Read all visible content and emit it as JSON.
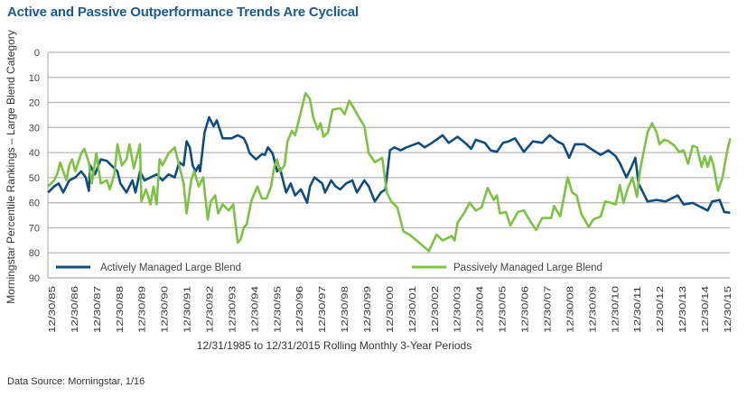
{
  "chart_data": {
    "type": "line",
    "title": "Active and Passive Outperformance Trends Are Cyclical",
    "ylabel": "Morningstar Percentile Rankings – Large Blend Category",
    "xlabel": "12/31/1985 to 12/31/2015 Rolling Monthly 3-Year Periods",
    "source": "Data Source: Morningstar, 1/16",
    "ylim": [
      0,
      90
    ],
    "y_inverted": true,
    "y_ticks": [
      0,
      10,
      20,
      30,
      40,
      50,
      60,
      70,
      80,
      90
    ],
    "x_tick_labels": [
      "12/30/85",
      "12/30/86",
      "12/30/87",
      "12/30/88",
      "12/30/89",
      "12/30/90",
      "12/30/91",
      "12/30/92",
      "12/30/93",
      "12/30/94",
      "12/30/95",
      "12/30/96",
      "12/30/97",
      "12/30/98",
      "12/30/99",
      "12/30/00",
      "12/30/01",
      "12/30/02",
      "12/30/03",
      "12/30/04",
      "12/30/05",
      "12/30/06",
      "12/30/07",
      "12/30/08",
      "12/30/09",
      "12/30/10",
      "12/30/11",
      "12/30/12",
      "12/30/13",
      "12/30/14",
      "12/30/15"
    ],
    "grid": true,
    "legend": "bottom",
    "series": [
      {
        "name": "Actively Managed Large Blend",
        "color": "#0f4c81",
        "points": [
          [
            1985.85,
            55.9
          ],
          [
            1986.12,
            53.5
          ],
          [
            1986.32,
            52.3
          ],
          [
            1986.52,
            55.9
          ],
          [
            1986.79,
            51.1
          ],
          [
            1987.06,
            49.9
          ],
          [
            1987.32,
            47.5
          ],
          [
            1987.52,
            49.9
          ],
          [
            1987.66,
            55.3
          ],
          [
            1987.72,
            45.1
          ],
          [
            1987.93,
            48.7
          ],
          [
            1988.19,
            42.7
          ],
          [
            1988.46,
            43.3
          ],
          [
            1988.66,
            45.1
          ],
          [
            1988.93,
            47.5
          ],
          [
            1989.06,
            52.3
          ],
          [
            1989.33,
            55.9
          ],
          [
            1989.46,
            53.5
          ],
          [
            1989.6,
            51.1
          ],
          [
            1989.73,
            55.9
          ],
          [
            1989.93,
            47.5
          ],
          [
            1990.13,
            51.1
          ],
          [
            1990.4,
            49.9
          ],
          [
            1990.67,
            48.7
          ],
          [
            1990.93,
            51.1
          ],
          [
            1991.2,
            48.7
          ],
          [
            1991.47,
            49.9
          ],
          [
            1991.67,
            43.9
          ],
          [
            1991.87,
            45.1
          ],
          [
            1992.0,
            35.5
          ],
          [
            1992.14,
            37.9
          ],
          [
            1992.27,
            45.1
          ],
          [
            1992.4,
            47.5
          ],
          [
            1992.54,
            45.1
          ],
          [
            1992.6,
            47.5
          ],
          [
            1992.8,
            31.9
          ],
          [
            1993.0,
            25.9
          ],
          [
            1993.2,
            29.5
          ],
          [
            1993.34,
            27.1
          ],
          [
            1993.6,
            34.3
          ],
          [
            1994.0,
            34.3
          ],
          [
            1994.27,
            33.1
          ],
          [
            1994.54,
            34.3
          ],
          [
            1994.67,
            36.7
          ],
          [
            1994.8,
            40.3
          ],
          [
            1995.08,
            42.7
          ],
          [
            1995.35,
            40.6
          ],
          [
            1995.48,
            40.9
          ],
          [
            1995.61,
            37.9
          ],
          [
            1995.82,
            40.3
          ],
          [
            1996.02,
            47.5
          ],
          [
            1996.15,
            46.3
          ],
          [
            1996.28,
            51.1
          ],
          [
            1996.42,
            55.9
          ],
          [
            1996.62,
            52.3
          ],
          [
            1996.82,
            57.1
          ],
          [
            1997.08,
            54.7
          ],
          [
            1997.35,
            60.0
          ],
          [
            1997.48,
            53.5
          ],
          [
            1997.68,
            49.9
          ],
          [
            1998.02,
            52.3
          ],
          [
            1998.15,
            55.9
          ],
          [
            1998.42,
            51.1
          ],
          [
            1998.62,
            53.5
          ],
          [
            1998.82,
            54.7
          ],
          [
            1999.09,
            52.3
          ],
          [
            1999.36,
            51.1
          ],
          [
            1999.56,
            55.9
          ],
          [
            1999.89,
            51.1
          ],
          [
            2000.09,
            53.5
          ],
          [
            2000.36,
            59.5
          ],
          [
            2000.63,
            55.9
          ],
          [
            2000.83,
            54.7
          ],
          [
            2001.03,
            39.1
          ],
          [
            2001.23,
            37.9
          ],
          [
            2001.5,
            39.1
          ],
          [
            2001.77,
            37.9
          ],
          [
            2002.3,
            36.1
          ],
          [
            2002.57,
            37.9
          ],
          [
            2002.9,
            36.1
          ],
          [
            2003.37,
            33.1
          ],
          [
            2003.64,
            36.1
          ],
          [
            2004.04,
            33.7
          ],
          [
            2004.44,
            36.7
          ],
          [
            2004.64,
            38.5
          ],
          [
            2004.84,
            34.9
          ],
          [
            2005.24,
            36.1
          ],
          [
            2005.5,
            39.1
          ],
          [
            2005.78,
            39.7
          ],
          [
            2006.05,
            36.1
          ],
          [
            2006.31,
            35.5
          ],
          [
            2006.58,
            34.3
          ],
          [
            2006.98,
            39.7
          ],
          [
            2007.38,
            35.5
          ],
          [
            2007.79,
            36.1
          ],
          [
            2008.12,
            33.1
          ],
          [
            2008.45,
            35.5
          ],
          [
            2008.72,
            36.7
          ],
          [
            2008.99,
            42.1
          ],
          [
            2009.25,
            36.7
          ],
          [
            2009.66,
            36.7
          ],
          [
            2010.06,
            39.1
          ],
          [
            2010.39,
            40.9
          ],
          [
            2010.73,
            39.1
          ],
          [
            2011.06,
            41.5
          ],
          [
            2011.26,
            44.5
          ],
          [
            2011.53,
            49.9
          ],
          [
            2011.73,
            46.3
          ],
          [
            2011.93,
            42.1
          ],
          [
            2012.07,
            52.3
          ],
          [
            2012.27,
            55.9
          ],
          [
            2012.47,
            59.5
          ],
          [
            2012.87,
            58.9
          ],
          [
            2013.27,
            59.5
          ],
          [
            2013.54,
            58.3
          ],
          [
            2013.81,
            57.1
          ],
          [
            2014.07,
            60.7
          ],
          [
            2014.47,
            60.1
          ],
          [
            2014.87,
            61.9
          ],
          [
            2015.14,
            63.1
          ],
          [
            2015.34,
            59.5
          ],
          [
            2015.67,
            58.9
          ],
          [
            2015.87,
            63.7
          ],
          [
            2016.14,
            64.0
          ]
        ]
      },
      {
        "name": "Passively Managed Large Blend",
        "color": "#7dc242",
        "points": [
          [
            1985.85,
            53.5
          ],
          [
            1986.12,
            51.1
          ],
          [
            1986.25,
            48.7
          ],
          [
            1986.39,
            44.0
          ],
          [
            1986.52,
            47.5
          ],
          [
            1986.66,
            51.1
          ],
          [
            1986.79,
            45.1
          ],
          [
            1986.92,
            42.7
          ],
          [
            1987.06,
            47.5
          ],
          [
            1987.32,
            40.3
          ],
          [
            1987.46,
            38.5
          ],
          [
            1987.66,
            44.0
          ],
          [
            1987.79,
            52.3
          ],
          [
            1987.99,
            40.3
          ],
          [
            1988.19,
            52.3
          ],
          [
            1988.46,
            51.1
          ],
          [
            1988.59,
            54.7
          ],
          [
            1988.79,
            48.7
          ],
          [
            1988.93,
            36.7
          ],
          [
            1989.13,
            45.1
          ],
          [
            1989.33,
            42.7
          ],
          [
            1989.46,
            36.7
          ],
          [
            1989.66,
            46.3
          ],
          [
            1989.93,
            36.7
          ],
          [
            1989.99,
            59.5
          ],
          [
            1990.2,
            54.7
          ],
          [
            1990.4,
            60.7
          ],
          [
            1990.53,
            53.5
          ],
          [
            1990.67,
            60.7
          ],
          [
            1990.8,
            42.7
          ],
          [
            1990.93,
            45.1
          ],
          [
            1991.2,
            40.3
          ],
          [
            1991.47,
            37.9
          ],
          [
            1991.67,
            45.1
          ],
          [
            1991.87,
            52.3
          ],
          [
            1992.0,
            64.3
          ],
          [
            1992.2,
            51.1
          ],
          [
            1992.34,
            47.5
          ],
          [
            1992.54,
            53.5
          ],
          [
            1992.74,
            49.9
          ],
          [
            1992.94,
            66.7
          ],
          [
            1993.07,
            59.5
          ],
          [
            1993.27,
            57.1
          ],
          [
            1993.4,
            64.3
          ],
          [
            1993.6,
            60.7
          ],
          [
            1993.87,
            63.1
          ],
          [
            1994.07,
            60.7
          ],
          [
            1994.27,
            75.9
          ],
          [
            1994.4,
            74.7
          ],
          [
            1994.54,
            69.9
          ],
          [
            1994.67,
            68.7
          ],
          [
            1994.87,
            59.5
          ],
          [
            1995.14,
            53.5
          ],
          [
            1995.34,
            58.3
          ],
          [
            1995.55,
            58.3
          ],
          [
            1995.75,
            53.5
          ],
          [
            1995.88,
            46.3
          ],
          [
            1996.02,
            42.7
          ],
          [
            1996.15,
            47.5
          ],
          [
            1996.35,
            45.1
          ],
          [
            1996.48,
            35.5
          ],
          [
            1996.68,
            31.3
          ],
          [
            1996.82,
            33.1
          ],
          [
            1997.02,
            25.9
          ],
          [
            1997.28,
            16.3
          ],
          [
            1997.48,
            18.7
          ],
          [
            1997.62,
            25.9
          ],
          [
            1997.82,
            30.7
          ],
          [
            1997.95,
            28.3
          ],
          [
            1998.08,
            33.7
          ],
          [
            1998.28,
            31.9
          ],
          [
            1998.48,
            22.9
          ],
          [
            1998.82,
            22.3
          ],
          [
            1999.02,
            24.7
          ],
          [
            1999.22,
            19.3
          ],
          [
            1999.42,
            22.3
          ],
          [
            1999.69,
            26.5
          ],
          [
            1999.89,
            29.5
          ],
          [
            2000.09,
            40.3
          ],
          [
            2000.36,
            43.9
          ],
          [
            2000.69,
            42.1
          ],
          [
            2000.89,
            55.9
          ],
          [
            2001.09,
            59.5
          ],
          [
            2001.36,
            61.9
          ],
          [
            2001.63,
            71.5
          ],
          [
            2001.89,
            72.7
          ],
          [
            2002.3,
            75.7
          ],
          [
            2002.76,
            79.3
          ],
          [
            2003.1,
            72.7
          ],
          [
            2003.37,
            75.1
          ],
          [
            2003.77,
            73.3
          ],
          [
            2003.9,
            75.1
          ],
          [
            2004.04,
            67.9
          ],
          [
            2004.31,
            64.3
          ],
          [
            2004.57,
            60.0
          ],
          [
            2004.84,
            63.1
          ],
          [
            2005.1,
            61.9
          ],
          [
            2005.37,
            54.1
          ],
          [
            2005.64,
            58.9
          ],
          [
            2005.78,
            57.1
          ],
          [
            2005.91,
            64.3
          ],
          [
            2006.18,
            63.7
          ],
          [
            2006.38,
            69.1
          ],
          [
            2006.72,
            63.7
          ],
          [
            2006.98,
            63.1
          ],
          [
            2007.25,
            67.3
          ],
          [
            2007.52,
            70.9
          ],
          [
            2007.79,
            66.1
          ],
          [
            2008.19,
            66.1
          ],
          [
            2008.32,
            61.3
          ],
          [
            2008.59,
            65.5
          ],
          [
            2008.72,
            59.5
          ],
          [
            2008.92,
            49.9
          ],
          [
            2009.12,
            55.9
          ],
          [
            2009.32,
            57.1
          ],
          [
            2009.52,
            64.3
          ],
          [
            2009.86,
            69.7
          ],
          [
            2010.06,
            66.7
          ],
          [
            2010.39,
            65.5
          ],
          [
            2010.59,
            59.5
          ],
          [
            2010.86,
            60.1
          ],
          [
            2011.06,
            60.7
          ],
          [
            2011.24,
            52.9
          ],
          [
            2011.4,
            60.1
          ],
          [
            2011.6,
            54.1
          ],
          [
            2011.8,
            49.9
          ],
          [
            2012.0,
            57.7
          ],
          [
            2012.13,
            47.5
          ],
          [
            2012.27,
            40.9
          ],
          [
            2012.47,
            31.9
          ],
          [
            2012.67,
            28.3
          ],
          [
            2012.87,
            31.9
          ],
          [
            2013.0,
            36.7
          ],
          [
            2013.2,
            34.9
          ],
          [
            2013.4,
            35.5
          ],
          [
            2013.67,
            37.3
          ],
          [
            2013.87,
            39.7
          ],
          [
            2014.07,
            39.1
          ],
          [
            2014.27,
            44.5
          ],
          [
            2014.47,
            37.3
          ],
          [
            2014.67,
            37.9
          ],
          [
            2014.87,
            45.7
          ],
          [
            2015.0,
            41.5
          ],
          [
            2015.14,
            45.7
          ],
          [
            2015.27,
            41.5
          ],
          [
            2015.4,
            45.1
          ],
          [
            2015.6,
            55.3
          ],
          [
            2015.8,
            49.9
          ],
          [
            2016.0,
            39.7
          ],
          [
            2016.14,
            34.3
          ]
        ]
      }
    ]
  }
}
